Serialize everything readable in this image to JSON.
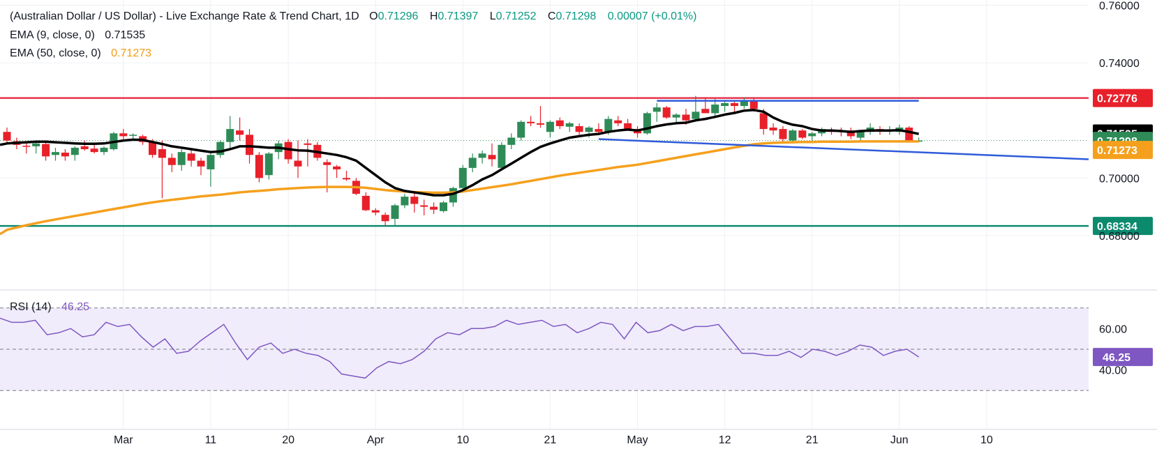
{
  "header": {
    "title": "(Australian Dollar / US Dollar) - Live Exchange Rate & Trend Chart, 1D",
    "o_label": "O",
    "o_value": "0.71296",
    "h_label": "H",
    "h_value": "0.71397",
    "l_label": "L",
    "l_value": "0.71252",
    "c_label": "C",
    "c_value": "0.71298",
    "change": "0.00007 (+0.01%)"
  },
  "indicators": {
    "ema9_label": "EMA (9, close, 0)",
    "ema9_value": "0.71535",
    "ema50_label": "EMA (50, close, 0)",
    "ema50_value": "0.71273",
    "rsi_label": "RSI (14)",
    "rsi_value": "46.25"
  },
  "colors": {
    "up": "#2e8b57",
    "down": "#e8202a",
    "ema9": "#000000",
    "ema50": "#f5a01d",
    "resistance": "#e8334a",
    "support": "#0c8a6e",
    "channel": "#2f5bd9",
    "rsi_line": "#7e57c2",
    "rsi_band": "#f0ecfb",
    "text": "#131722",
    "green_text": "#089981"
  },
  "price_axis": {
    "labels": [
      "0.76000",
      "0.74000",
      "0.70000",
      "0.68000"
    ],
    "values": [
      0.76,
      0.74,
      0.7,
      0.68
    ]
  },
  "rsi_axis": {
    "labels": [
      "60.00",
      "40.00"
    ],
    "values": [
      60,
      40
    ],
    "upper_band": 70,
    "lower_band": 30,
    "mid": 50
  },
  "tags": {
    "resistance": "0.72776",
    "ema9": "0.71535",
    "close": "0.71298",
    "ema50": "0.71273",
    "support": "0.68334",
    "rsi": "46.25"
  },
  "chart_data": {
    "type": "candlestick",
    "title": "(Australian Dollar / US Dollar) - Live Exchange Rate & Trend Chart, 1D",
    "x_ticks": [
      "Mar",
      "11",
      "20",
      "Apr",
      "10",
      "21",
      "May",
      "12",
      "21",
      "Jun",
      "10"
    ],
    "ylim": [
      0.6749,
      0.7606
    ],
    "horizontal_levels": [
      {
        "value": 0.72776,
        "color": "#e8334a"
      },
      {
        "value": 0.68334,
        "color": "#0c8a6e"
      }
    ],
    "ohlc": [
      [
        0.716,
        0.7175,
        0.712,
        0.713
      ],
      [
        0.7128,
        0.714,
        0.71,
        0.7115
      ],
      [
        0.7112,
        0.7125,
        0.7085,
        0.711
      ],
      [
        0.711,
        0.713,
        0.7085,
        0.712
      ],
      [
        0.7118,
        0.7125,
        0.706,
        0.7075
      ],
      [
        0.708,
        0.7105,
        0.706,
        0.709
      ],
      [
        0.7088,
        0.71,
        0.706,
        0.7075
      ],
      [
        0.708,
        0.711,
        0.706,
        0.7105
      ],
      [
        0.711,
        0.713,
        0.7095,
        0.71
      ],
      [
        0.7102,
        0.7115,
        0.7085,
        0.709
      ],
      [
        0.709,
        0.711,
        0.708,
        0.7105
      ],
      [
        0.71,
        0.716,
        0.7095,
        0.7155
      ],
      [
        0.7155,
        0.717,
        0.7135,
        0.7145
      ],
      [
        0.7148,
        0.7155,
        0.7135,
        0.715
      ],
      [
        0.7145,
        0.715,
        0.7115,
        0.7125
      ],
      [
        0.7125,
        0.7135,
        0.707,
        0.708
      ],
      [
        0.71,
        0.713,
        0.693,
        0.707
      ],
      [
        0.707,
        0.7085,
        0.702,
        0.7045
      ],
      [
        0.7045,
        0.71,
        0.7025,
        0.709
      ],
      [
        0.7085,
        0.71,
        0.704,
        0.706
      ],
      [
        0.706,
        0.707,
        0.701,
        0.704
      ],
      [
        0.703,
        0.709,
        0.697,
        0.708
      ],
      [
        0.708,
        0.713,
        0.707,
        0.7125
      ],
      [
        0.7125,
        0.7215,
        0.71,
        0.717
      ],
      [
        0.7165,
        0.721,
        0.713,
        0.715
      ],
      [
        0.715,
        0.717,
        0.705,
        0.708
      ],
      [
        0.708,
        0.709,
        0.6985,
        0.7
      ],
      [
        0.701,
        0.709,
        0.6995,
        0.7085
      ],
      [
        0.709,
        0.713,
        0.7065,
        0.712
      ],
      [
        0.7125,
        0.7135,
        0.705,
        0.7065
      ],
      [
        0.706,
        0.713,
        0.7,
        0.704
      ],
      [
        0.712,
        0.7135,
        0.704,
        0.7115
      ],
      [
        0.7115,
        0.7125,
        0.706,
        0.707
      ],
      [
        0.7055,
        0.7065,
        0.695,
        0.7045
      ],
      [
        0.704,
        0.7045,
        0.7,
        0.703
      ],
      [
        0.7,
        0.7025,
        0.699,
        0.6995
      ],
      [
        0.699,
        0.7,
        0.694,
        0.6945
      ],
      [
        0.6938,
        0.695,
        0.6885,
        0.6888
      ],
      [
        0.6888,
        0.6895,
        0.687,
        0.688
      ],
      [
        0.6872,
        0.688,
        0.6833,
        0.685
      ],
      [
        0.6858,
        0.691,
        0.6836,
        0.6905
      ],
      [
        0.6905,
        0.6945,
        0.6895,
        0.6935
      ],
      [
        0.6935,
        0.6955,
        0.688,
        0.691
      ],
      [
        0.6905,
        0.6925,
        0.687,
        0.69
      ],
      [
        0.69,
        0.6915,
        0.6875,
        0.689
      ],
      [
        0.6885,
        0.692,
        0.688,
        0.6915
      ],
      [
        0.6915,
        0.697,
        0.69,
        0.6965
      ],
      [
        0.6965,
        0.7045,
        0.6955,
        0.7035
      ],
      [
        0.7035,
        0.7085,
        0.702,
        0.707
      ],
      [
        0.707,
        0.7095,
        0.705,
        0.7085
      ],
      [
        0.708,
        0.712,
        0.704,
        0.7065
      ],
      [
        0.7035,
        0.7125,
        0.703,
        0.7115
      ],
      [
        0.7115,
        0.7155,
        0.71,
        0.714
      ],
      [
        0.714,
        0.72,
        0.713,
        0.7195
      ],
      [
        0.7195,
        0.7215,
        0.718,
        0.719
      ],
      [
        0.719,
        0.725,
        0.7175,
        0.7185
      ],
      [
        0.716,
        0.72,
        0.714,
        0.7195
      ],
      [
        0.72,
        0.721,
        0.717,
        0.718
      ],
      [
        0.7178,
        0.7195,
        0.716,
        0.719
      ],
      [
        0.718,
        0.719,
        0.715,
        0.716
      ],
      [
        0.716,
        0.718,
        0.714,
        0.7175
      ],
      [
        0.717,
        0.719,
        0.715,
        0.716
      ],
      [
        0.716,
        0.7215,
        0.715,
        0.7205
      ],
      [
        0.72,
        0.7215,
        0.718,
        0.719
      ],
      [
        0.719,
        0.7205,
        0.7165,
        0.717
      ],
      [
        0.717,
        0.718,
        0.714,
        0.7155
      ],
      [
        0.7155,
        0.723,
        0.715,
        0.7225
      ],
      [
        0.723,
        0.726,
        0.7195,
        0.7245
      ],
      [
        0.7245,
        0.725,
        0.7205,
        0.721
      ],
      [
        0.721,
        0.7225,
        0.719,
        0.722
      ],
      [
        0.722,
        0.724,
        0.7185,
        0.72
      ],
      [
        0.7205,
        0.7285,
        0.7195,
        0.723
      ],
      [
        0.724,
        0.728,
        0.7225,
        0.7225
      ],
      [
        0.7225,
        0.7275,
        0.7215,
        0.7255
      ],
      [
        0.725,
        0.727,
        0.723,
        0.726
      ],
      [
        0.726,
        0.7265,
        0.7225,
        0.725
      ],
      [
        0.725,
        0.728,
        0.724,
        0.727
      ],
      [
        0.727,
        0.7278,
        0.723,
        0.724
      ],
      [
        0.7225,
        0.724,
        0.715,
        0.717
      ],
      [
        0.7175,
        0.719,
        0.715,
        0.7165
      ],
      [
        0.717,
        0.718,
        0.712,
        0.7135
      ],
      [
        0.713,
        0.717,
        0.712,
        0.7165
      ],
      [
        0.7165,
        0.717,
        0.7135,
        0.714
      ],
      [
        0.7145,
        0.716,
        0.713,
        0.7155
      ],
      [
        0.7155,
        0.7175,
        0.7145,
        0.717
      ],
      [
        0.7165,
        0.7175,
        0.715,
        0.716
      ],
      [
        0.7165,
        0.7175,
        0.7145,
        0.716
      ],
      [
        0.7165,
        0.7175,
        0.7135,
        0.7145
      ],
      [
        0.714,
        0.7165,
        0.713,
        0.716
      ],
      [
        0.716,
        0.719,
        0.715,
        0.7175
      ],
      [
        0.717,
        0.718,
        0.715,
        0.7165
      ],
      [
        0.7165,
        0.718,
        0.715,
        0.7165
      ],
      [
        0.716,
        0.7185,
        0.715,
        0.7175
      ],
      [
        0.7175,
        0.718,
        0.7125,
        0.713
      ],
      [
        0.713,
        0.714,
        0.7125,
        0.713
      ]
    ],
    "ema9": [
      0.712,
      0.7122,
      0.7124,
      0.7126,
      0.7126,
      0.7124,
      0.7122,
      0.712,
      0.7119,
      0.7119,
      0.712,
      0.7125,
      0.713,
      0.7133,
      0.7132,
      0.7125,
      0.7118,
      0.711,
      0.7105,
      0.71,
      0.7095,
      0.709,
      0.7092,
      0.71,
      0.711,
      0.711,
      0.7108,
      0.7105,
      0.7105,
      0.71,
      0.7096,
      0.7095,
      0.709,
      0.7085,
      0.708,
      0.7072,
      0.706,
      0.7035,
      0.701,
      0.6985,
      0.6965,
      0.6955,
      0.695,
      0.6945,
      0.694,
      0.694,
      0.6945,
      0.6958,
      0.6975,
      0.6995,
      0.701,
      0.703,
      0.705,
      0.707,
      0.709,
      0.7108,
      0.712,
      0.713,
      0.714,
      0.7145,
      0.715,
      0.7153,
      0.716,
      0.7165,
      0.7168,
      0.7165,
      0.7172,
      0.718,
      0.7186,
      0.719,
      0.7192,
      0.72,
      0.7205,
      0.7212,
      0.722,
      0.7226,
      0.7234,
      0.7236,
      0.723,
      0.721,
      0.7195,
      0.7185,
      0.718,
      0.717,
      0.7165,
      0.7165,
      0.7163,
      0.716,
      0.7163,
      0.7165,
      0.7165,
      0.7165,
      0.7166,
      0.716,
      0.7153
    ],
    "ema50": [
      0.682,
      0.6828,
      0.6836,
      0.6843,
      0.685,
      0.6856,
      0.6862,
      0.6868,
      0.6874,
      0.688,
      0.6886,
      0.6892,
      0.6898,
      0.6904,
      0.691,
      0.6915,
      0.692,
      0.6924,
      0.6928,
      0.6932,
      0.6936,
      0.6939,
      0.6942,
      0.6946,
      0.695,
      0.6953,
      0.6955,
      0.6958,
      0.6961,
      0.6963,
      0.6965,
      0.6967,
      0.6968,
      0.6969,
      0.6969,
      0.6969,
      0.6968,
      0.6966,
      0.6962,
      0.6958,
      0.6955,
      0.6953,
      0.6951,
      0.695,
      0.6949,
      0.6949,
      0.695,
      0.6953,
      0.6958,
      0.6963,
      0.6968,
      0.6973,
      0.6978,
      0.6984,
      0.699,
      0.6996,
      0.7002,
      0.7008,
      0.7013,
      0.7018,
      0.7023,
      0.7028,
      0.7033,
      0.7038,
      0.7042,
      0.7046,
      0.7052,
      0.7058,
      0.7064,
      0.707,
      0.7076,
      0.7082,
      0.7088,
      0.7094,
      0.71,
      0.7106,
      0.7112,
      0.7117,
      0.712,
      0.7122,
      0.7123,
      0.7124,
      0.7125,
      0.7125,
      0.7126,
      0.7126,
      0.7126,
      0.7126,
      0.7127,
      0.7127,
      0.7127,
      0.7127,
      0.7127,
      0.7127,
      0.7127
    ],
    "channel_upper": [
      [
        67,
        0.72776
      ],
      [
        94,
        0.72776
      ]
    ],
    "channel_lower": [
      [
        61,
        0.7135
      ],
      [
        110,
        0.7085
      ]
    ],
    "rsi": {
      "ylim": [
        24,
        78
      ],
      "values": [
        65,
        63,
        63,
        64,
        57,
        58,
        60,
        56,
        57,
        63,
        61,
        62,
        56,
        51,
        55,
        48,
        49,
        54,
        58,
        62,
        53,
        45,
        51,
        53,
        48,
        50,
        48,
        47,
        44,
        38,
        37,
        36,
        41,
        44,
        43,
        45,
        49,
        55,
        58,
        57,
        60,
        60,
        61,
        64,
        62,
        63,
        64,
        61,
        62,
        58,
        60,
        63,
        62,
        55,
        63,
        58,
        59,
        62,
        59,
        61,
        61,
        62,
        55,
        48,
        48,
        47,
        47,
        49,
        46,
        50,
        49,
        47,
        49,
        52,
        51,
        47,
        49,
        50,
        46.25
      ]
    },
    "x_tick_index": [
      12,
      21,
      29,
      38,
      47,
      56,
      65,
      74,
      83,
      92,
      101
    ]
  }
}
